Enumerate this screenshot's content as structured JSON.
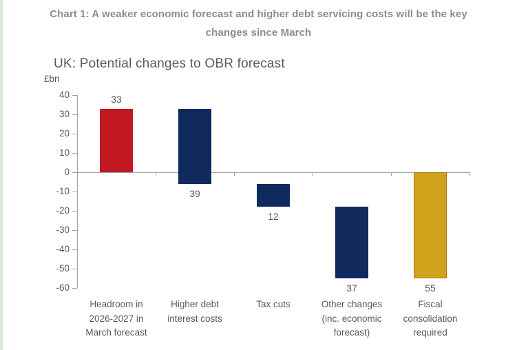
{
  "page": {
    "heading_line1": "Chart 1: A weaker economic forecast and higher debt servicing costs will be the key",
    "heading_line2": "changes since March"
  },
  "chart_data": {
    "type": "bar",
    "subtype": "waterfall",
    "title": "UK: Potential changes to OBR forecast",
    "unit_label": "£bn",
    "xlabel": "",
    "ylabel": "£bn",
    "ylim": [
      -60,
      40
    ],
    "y_ticks": [
      40,
      30,
      20,
      10,
      0,
      -10,
      -20,
      -30,
      -40,
      -50,
      -60
    ],
    "grid": false,
    "legend": "none",
    "categories": [
      "Headroom in 2026-2027 in March forecast",
      "Higher debt interest costs",
      "Tax cuts",
      "Other changes (inc. economic forecast)",
      "Fiscal consolidation required"
    ],
    "bars": [
      {
        "label_lines": [
          "Headroom in",
          "2026-2027 in",
          "March forecast"
        ],
        "value": 33,
        "from": 0,
        "to": 33,
        "color": "#c11723",
        "border_color": null,
        "value_label": "33",
        "value_label_position": "above"
      },
      {
        "label_lines": [
          "Higher debt",
          "interest costs"
        ],
        "value": 39,
        "from": 33,
        "to": -6,
        "color": "#112a5e",
        "border_color": null,
        "value_label": "39",
        "value_label_position": "below"
      },
      {
        "label_lines": [
          "Tax cuts"
        ],
        "value": 12,
        "from": -6,
        "to": -18,
        "color": "#112a5e",
        "border_color": null,
        "value_label": "12",
        "value_label_position": "below"
      },
      {
        "label_lines": [
          "Other changes",
          "(inc. economic",
          "forecast)"
        ],
        "value": 37,
        "from": -18,
        "to": -55,
        "color": "#112a5e",
        "border_color": null,
        "value_label": "37",
        "value_label_position": "below"
      },
      {
        "label_lines": [
          "Fiscal",
          "consolidation",
          "required"
        ],
        "value": 55,
        "from": 0,
        "to": -55,
        "color": "#d3a21d",
        "border_color": "#a37d13",
        "value_label": "55",
        "value_label_position": "below"
      }
    ],
    "colors": {
      "positive_bar": "#c11723",
      "negative_bar": "#112a5e",
      "result_bar": "#d3a21d",
      "axis": "#a3a3a3",
      "chart_text": "#595959",
      "heading_text": "#8c8c8c",
      "edge_strip": "#d8e9d5"
    }
  }
}
